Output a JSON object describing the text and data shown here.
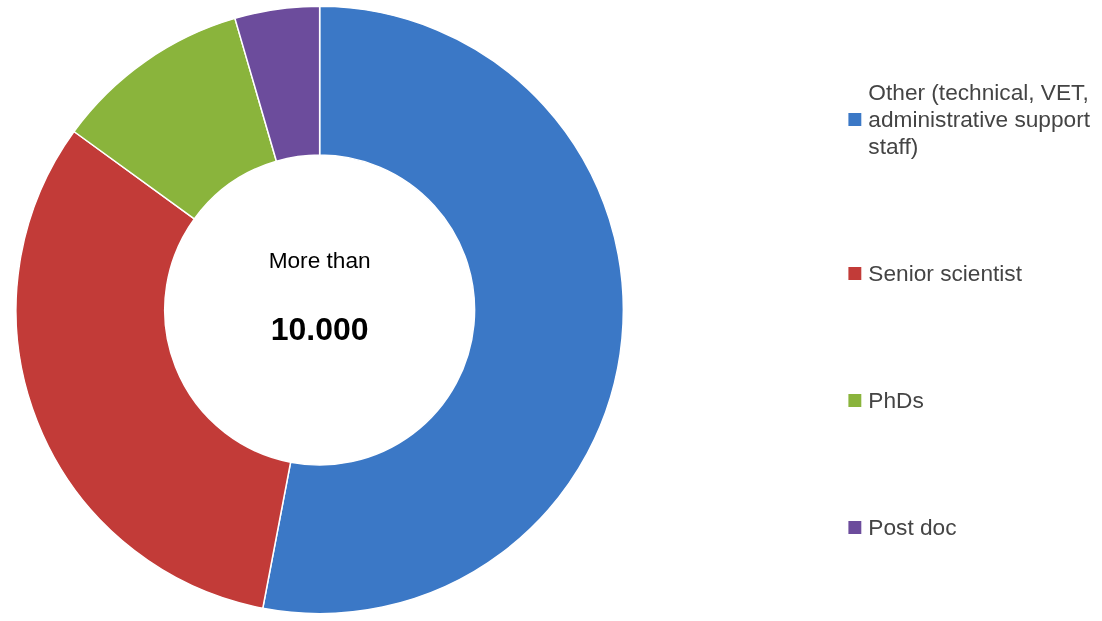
{
  "chart_data": {
    "type": "donut",
    "categories": [
      "Other (technical, VET, administrative support staff)",
      "Senior scientist",
      "PhDs",
      "Post doc"
    ],
    "values": [
      53,
      32,
      10.5,
      4.5
    ],
    "colors": [
      "#3b78c6",
      "#c23b38",
      "#8ab43c",
      "#6c4c9c"
    ],
    "annotations": [
      "More than",
      "10.000"
    ],
    "legend": "right"
  }
}
